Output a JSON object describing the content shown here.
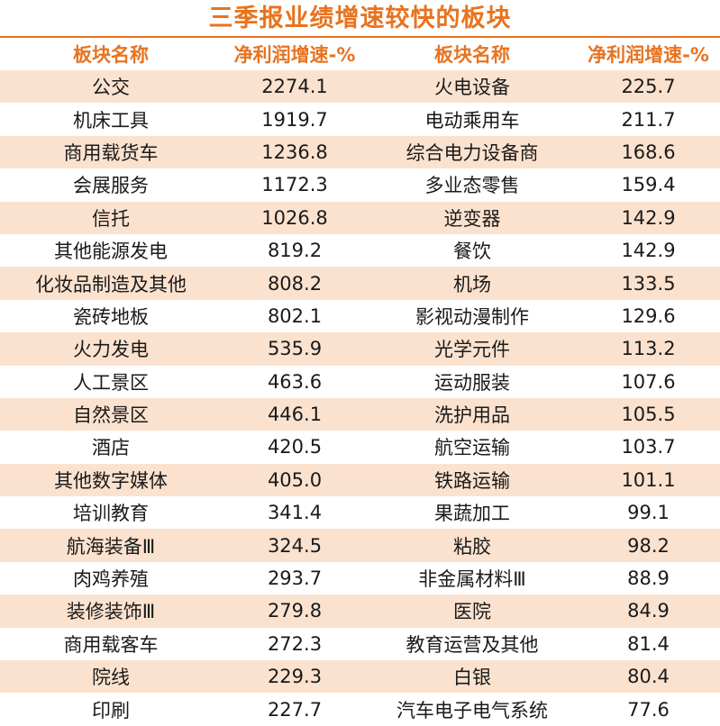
{
  "title": "三季报业绩增速较快的板块",
  "headers": {
    "name_left": "板块名称",
    "growth_left": "净利润增速-%",
    "name_right": "板块名称",
    "growth_right": "净利润增速-%"
  },
  "accent_color": "#e8731f",
  "stripe_color": "#fbe2cf",
  "rows": [
    {
      "left_name": "公交",
      "left_value": "2274.1",
      "right_name": "火电设备",
      "right_value": "225.7"
    },
    {
      "left_name": "机床工具",
      "left_value": "1919.7",
      "right_name": "电动乘用车",
      "right_value": "211.7"
    },
    {
      "left_name": "商用载货车",
      "left_value": "1236.8",
      "right_name": "综合电力设备商",
      "right_value": "168.6"
    },
    {
      "left_name": "会展服务",
      "left_value": "1172.3",
      "right_name": "多业态零售",
      "right_value": "159.4"
    },
    {
      "left_name": "信托",
      "left_value": "1026.8",
      "right_name": "逆变器",
      "right_value": "142.9"
    },
    {
      "left_name": "其他能源发电",
      "left_value": "819.2",
      "right_name": "餐饮",
      "right_value": "142.9"
    },
    {
      "left_name": "化妆品制造及其他",
      "left_value": "808.2",
      "right_name": "机场",
      "right_value": "133.5"
    },
    {
      "left_name": "瓷砖地板",
      "left_value": "802.1",
      "right_name": "影视动漫制作",
      "right_value": "129.6"
    },
    {
      "left_name": "火力发电",
      "left_value": "535.9",
      "right_name": "光学元件",
      "right_value": "113.2"
    },
    {
      "left_name": "人工景区",
      "left_value": "463.6",
      "right_name": "运动服装",
      "right_value": "107.6"
    },
    {
      "left_name": "自然景区",
      "left_value": "446.1",
      "right_name": "洗护用品",
      "right_value": "105.5"
    },
    {
      "left_name": "酒店",
      "left_value": "420.5",
      "right_name": "航空运输",
      "right_value": "103.7"
    },
    {
      "left_name": "其他数字媒体",
      "left_value": "405.0",
      "right_name": "铁路运输",
      "right_value": "101.1"
    },
    {
      "left_name": "培训教育",
      "left_value": "341.4",
      "right_name": "果蔬加工",
      "right_value": "99.1"
    },
    {
      "left_name": "航海装备Ⅲ",
      "left_value": "324.5",
      "right_name": "粘胶",
      "right_value": "98.2"
    },
    {
      "left_name": "肉鸡养殖",
      "left_value": "293.7",
      "right_name": "非金属材料Ⅲ",
      "right_value": "88.9"
    },
    {
      "left_name": "装修装饰Ⅲ",
      "left_value": "279.8",
      "right_name": "医院",
      "right_value": "84.9"
    },
    {
      "left_name": "商用载客车",
      "left_value": "272.3",
      "right_name": "教育运营及其他",
      "right_value": "81.4"
    },
    {
      "left_name": "院线",
      "left_value": "229.3",
      "right_name": "白银",
      "right_value": "80.4"
    },
    {
      "left_name": "印刷",
      "left_value": "227.7",
      "right_name": "汽车电子电气系统",
      "right_value": "77.6"
    }
  ]
}
